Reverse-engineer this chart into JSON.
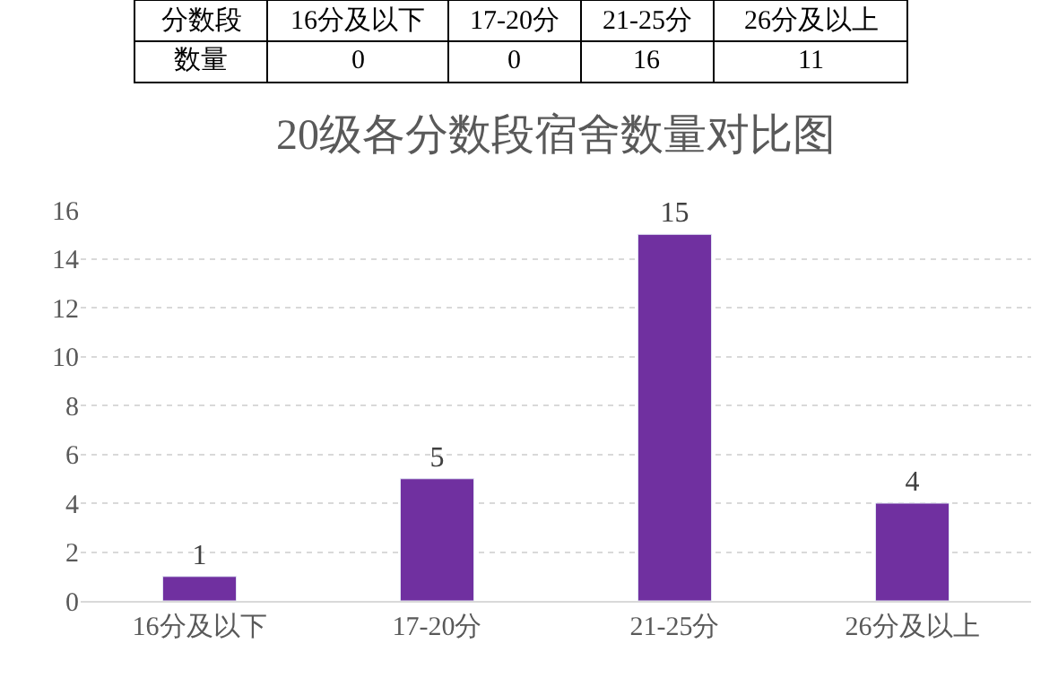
{
  "chart_data": {
    "type": "bar",
    "title": "20级各分数段宿舍数量对比图",
    "categories": [
      "16分及以下",
      "17-20分",
      "21-25分",
      "26分及以上"
    ],
    "values": [
      1,
      5,
      15,
      4
    ],
    "color": "#7030a0",
    "ylim": [
      0,
      16
    ],
    "yticks": [
      0,
      2,
      4,
      6,
      8,
      10,
      12,
      14,
      16
    ],
    "grid": "y",
    "data_labels": true,
    "legend": false,
    "annotations": [
      "分数段",
      "16分及以下",
      "17-20分",
      "21-25分",
      "26分及以上",
      "数量",
      "0",
      "0",
      "16",
      "11"
    ]
  }
}
